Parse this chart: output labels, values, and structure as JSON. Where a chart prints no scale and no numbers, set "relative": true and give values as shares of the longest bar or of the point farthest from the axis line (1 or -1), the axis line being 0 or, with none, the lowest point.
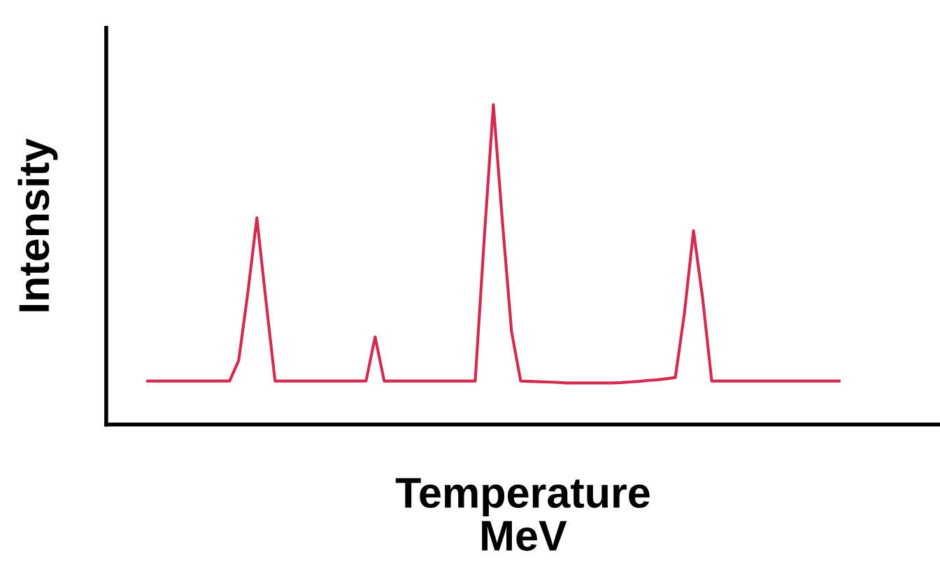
{
  "chart_data": {
    "type": "line",
    "relative": true,
    "xlabel": "Temperature\nMeV",
    "ylabel": "Intensity",
    "grid": false,
    "legend": false,
    "marker": "none",
    "line_style": "solid",
    "categories": [
      null,
      null,
      null,
      null,
      null,
      null,
      null,
      null,
      null,
      null,
      null,
      null,
      null,
      null,
      null,
      null,
      null,
      null,
      null,
      null,
      null,
      null,
      null,
      null,
      null,
      null,
      null,
      null,
      null,
      null,
      null,
      null,
      null,
      null,
      null,
      null,
      null,
      null,
      null,
      null,
      null,
      null,
      null,
      null,
      null,
      null,
      null,
      null,
      null,
      null,
      null,
      null,
      null,
      null,
      null,
      null,
      null,
      null,
      null,
      null,
      null,
      null,
      null,
      null,
      null,
      null,
      null,
      null,
      null,
      null,
      null,
      null,
      null,
      null,
      null,
      null,
      null
    ],
    "series": [
      {
        "color": "#d42a4f",
        "values": [
          0.136,
          0.136,
          0.136,
          0.136,
          0.136,
          0.136,
          0.136,
          0.136,
          0.136,
          0.136,
          0.2,
          0.41,
          0.646,
          0.387,
          0.136,
          0.136,
          0.136,
          0.136,
          0.136,
          0.136,
          0.136,
          0.136,
          0.136,
          0.136,
          0.136,
          0.274,
          0.136,
          0.136,
          0.136,
          0.136,
          0.136,
          0.136,
          0.136,
          0.136,
          0.136,
          0.136,
          0.136,
          0.584,
          1,
          0.632,
          0.29,
          0.136,
          0.135,
          0.134,
          0.133,
          0.132,
          0.13,
          0.13,
          0.13,
          0.13,
          0.13,
          0.13,
          0.131,
          0.133,
          0.135,
          0.138,
          0.14,
          0.143,
          0.147,
          0.348,
          0.606,
          0.396,
          0.136,
          0.136,
          0.136,
          0.136,
          0.136,
          0.136,
          0.136,
          0.136,
          0.136,
          0.136,
          0.136,
          0.136,
          0.136,
          0.136,
          0.136
        ]
      }
    ]
  }
}
